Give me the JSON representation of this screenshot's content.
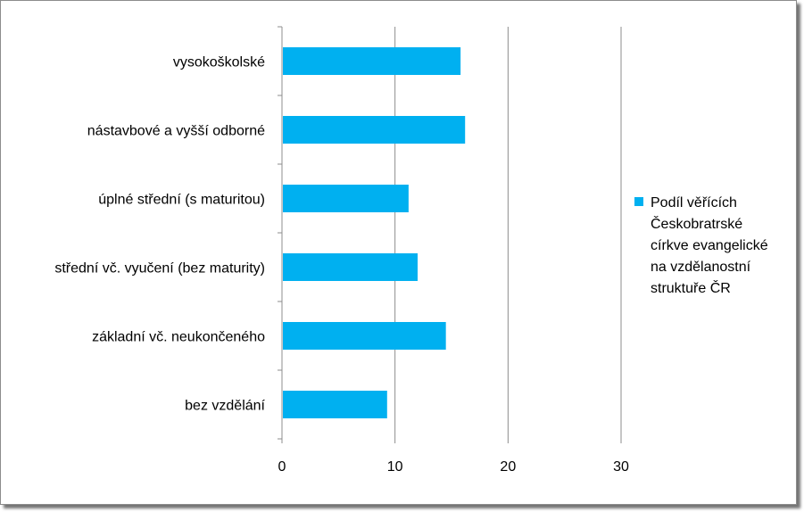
{
  "chart_data": {
    "type": "bar",
    "orientation": "horizontal",
    "categories": [
      "vysokoškolské",
      "nástavbové a vyšší odborné",
      "úplné střední (s maturitou)",
      "střední vč. vyučení (bez maturity)",
      "základní vč. neukončeného",
      "bez vzdělání"
    ],
    "series": [
      {
        "name": "Podíl věřících Českobratrské církve evangelické na vzdělanostní struktuře ČR",
        "values": [
          15.8,
          16.2,
          11.2,
          12.0,
          14.5,
          9.3
        ],
        "color": "#00b0f0"
      }
    ],
    "x_ticks": [
      "0",
      "10",
      "20",
      "30"
    ],
    "xlim": [
      0,
      30
    ],
    "title": "",
    "xlabel": "",
    "ylabel": "",
    "grid": "vertical",
    "legend_position": "right",
    "legend_lines": [
      "Podíl věřících",
      "Českobratrské",
      "církve evangelické",
      "na vzdělanostní",
      "struktuře ČR"
    ]
  }
}
